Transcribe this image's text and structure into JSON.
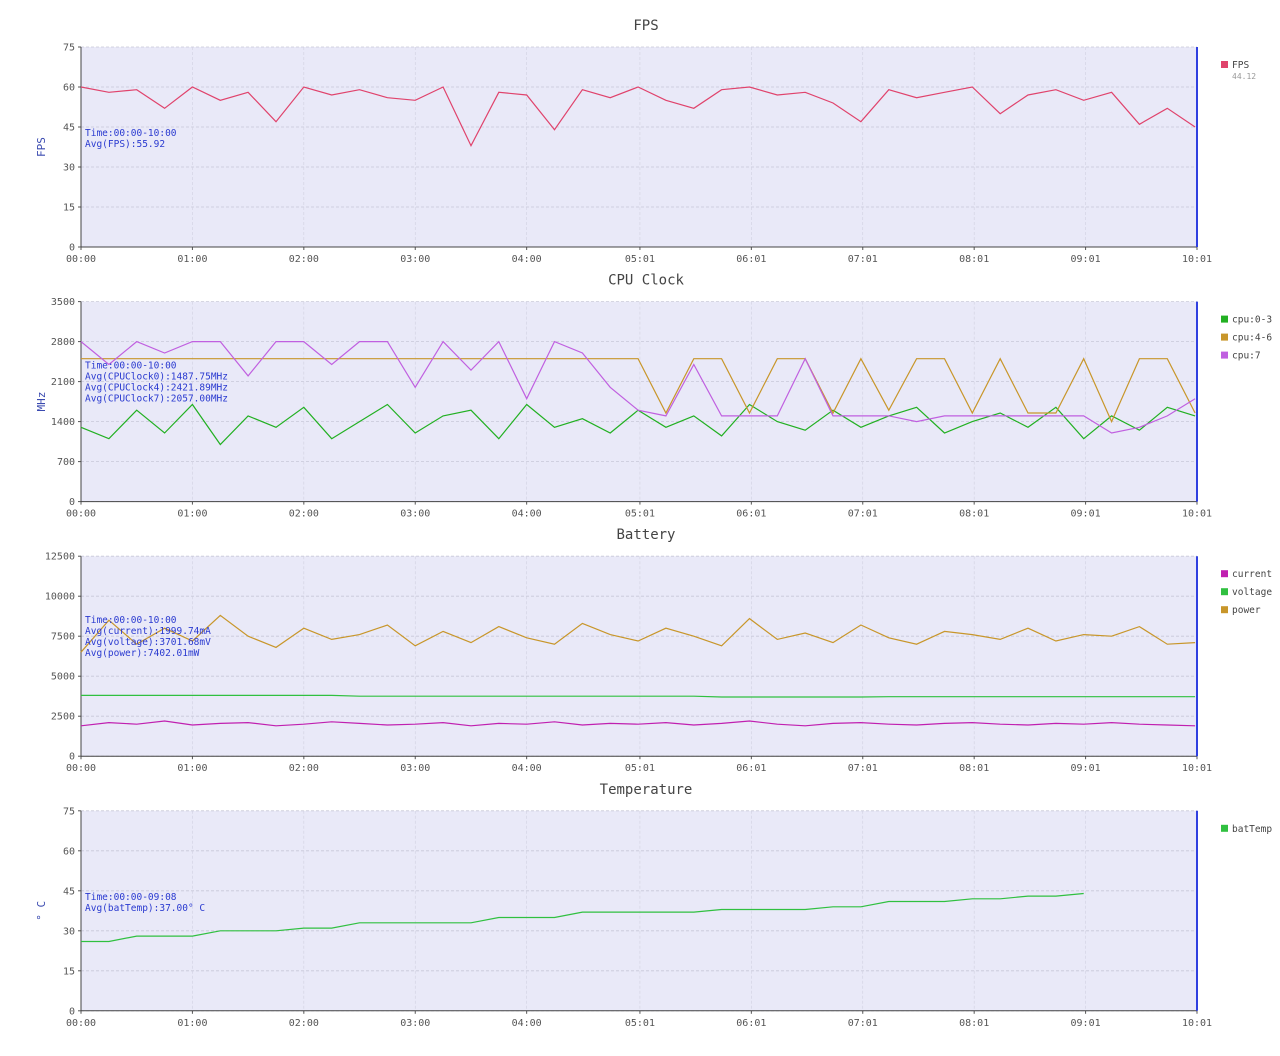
{
  "chart_data": [
    {
      "type": "line",
      "title": "FPS",
      "ylabel": "FPS",
      "legend": "right",
      "annotations": [
        "Time:00:00-10:00",
        "Avg(FPS):55.92"
      ],
      "x": [
        0,
        15,
        30,
        45,
        60,
        75,
        90,
        105,
        120,
        135,
        150,
        165,
        180,
        195,
        210,
        225,
        240,
        255,
        270,
        285,
        300,
        315,
        330,
        345,
        360,
        375,
        390,
        405,
        420,
        435,
        450,
        465,
        480,
        495,
        510,
        525,
        540,
        555,
        570,
        585,
        600
      ],
      "xlim": [
        0,
        601
      ],
      "xticks": [
        {
          "value": 0,
          "label": "00:00"
        },
        {
          "value": 60,
          "label": "01:00"
        },
        {
          "value": 120,
          "label": "02:00"
        },
        {
          "value": 180,
          "label": "03:00"
        },
        {
          "value": 240,
          "label": "04:00"
        },
        {
          "value": 301,
          "label": "05:01"
        },
        {
          "value": 361,
          "label": "06:01"
        },
        {
          "value": 421,
          "label": "07:01"
        },
        {
          "value": 481,
          "label": "08:01"
        },
        {
          "value": 541,
          "label": "09:01"
        },
        {
          "value": 601,
          "label": "10:01"
        }
      ],
      "ylim": [
        0,
        75
      ],
      "yticks": [
        0,
        15,
        30,
        45,
        60,
        75
      ],
      "grid": true,
      "series": [
        {
          "name": "FPS",
          "legend_value": "44.12",
          "color": "#e0436c",
          "values": [
            60,
            58,
            59,
            52,
            60,
            55,
            58,
            47,
            60,
            57,
            59,
            56,
            55,
            60,
            38,
            58,
            57,
            44,
            59,
            56,
            60,
            55,
            52,
            59,
            60,
            57,
            58,
            54,
            47,
            59,
            56,
            58,
            60,
            50,
            57,
            59,
            55,
            58,
            46,
            52,
            45
          ]
        }
      ]
    },
    {
      "type": "line",
      "title": "CPU Clock",
      "ylabel": "MHz",
      "legend": "right",
      "annotations": [
        "Time:00:00-10:00",
        "Avg(CPUClock0):1487.75MHz",
        "Avg(CPUClock4):2421.89MHz",
        "Avg(CPUClock7):2057.00MHz"
      ],
      "x": [
        0,
        15,
        30,
        45,
        60,
        75,
        90,
        105,
        120,
        135,
        150,
        165,
        180,
        195,
        210,
        225,
        240,
        255,
        270,
        285,
        300,
        315,
        330,
        345,
        360,
        375,
        390,
        405,
        420,
        435,
        450,
        465,
        480,
        495,
        510,
        525,
        540,
        555,
        570,
        585,
        600
      ],
      "xlim": [
        0,
        601
      ],
      "xticks": [
        {
          "value": 0,
          "label": "00:00"
        },
        {
          "value": 60,
          "label": "01:00"
        },
        {
          "value": 120,
          "label": "02:00"
        },
        {
          "value": 180,
          "label": "03:00"
        },
        {
          "value": 240,
          "label": "04:00"
        },
        {
          "value": 301,
          "label": "05:01"
        },
        {
          "value": 361,
          "label": "06:01"
        },
        {
          "value": 421,
          "label": "07:01"
        },
        {
          "value": 481,
          "label": "08:01"
        },
        {
          "value": 541,
          "label": "09:01"
        },
        {
          "value": 601,
          "label": "10:01"
        }
      ],
      "ylim": [
        0,
        3500
      ],
      "yticks": [
        0,
        700,
        1400,
        2100,
        2800,
        3500
      ],
      "grid": true,
      "series": [
        {
          "name": "cpu:0-3",
          "color": "#22b022",
          "values": [
            1300,
            1100,
            1600,
            1200,
            1700,
            1000,
            1500,
            1300,
            1650,
            1100,
            1400,
            1700,
            1200,
            1500,
            1600,
            1100,
            1700,
            1300,
            1450,
            1200,
            1600,
            1300,
            1500,
            1150,
            1700,
            1400,
            1250,
            1600,
            1300,
            1500,
            1650,
            1200,
            1400,
            1550,
            1300,
            1650,
            1100,
            1500,
            1250,
            1650,
            1500
          ]
        },
        {
          "name": "cpu:4-6",
          "color": "#c8962a",
          "values": [
            2500,
            2500,
            2500,
            2500,
            2500,
            2500,
            2500,
            2500,
            2500,
            2500,
            2500,
            2500,
            2500,
            2500,
            2500,
            2500,
            2500,
            2500,
            2500,
            2500,
            2500,
            1550,
            2500,
            2500,
            1550,
            2500,
            2500,
            1550,
            2500,
            1600,
            2500,
            2500,
            1550,
            2500,
            1550,
            1550,
            2500,
            1400,
            2500,
            2500,
            1550
          ]
        },
        {
          "name": "cpu:7",
          "color": "#c060e0",
          "values": [
            2800,
            2400,
            2800,
            2600,
            2800,
            2800,
            2200,
            2800,
            2800,
            2400,
            2800,
            2800,
            2000,
            2800,
            2300,
            2800,
            1800,
            2800,
            2600,
            2000,
            1600,
            1500,
            2400,
            1500,
            1500,
            1500,
            2500,
            1500,
            1500,
            1500,
            1400,
            1500,
            1500,
            1500,
            1500,
            1500,
            1500,
            1200,
            1300,
            1500,
            1800
          ]
        }
      ]
    },
    {
      "type": "line",
      "title": "Battery",
      "legend": "right",
      "annotations": [
        "Time:00:00-10:00",
        "Avg(current):1999.74mA",
        "Avg(voltage):3701.68mV",
        "Avg(power):7402.01mW"
      ],
      "x": [
        0,
        15,
        30,
        45,
        60,
        75,
        90,
        105,
        120,
        135,
        150,
        165,
        180,
        195,
        210,
        225,
        240,
        255,
        270,
        285,
        300,
        315,
        330,
        345,
        360,
        375,
        390,
        405,
        420,
        435,
        450,
        465,
        480,
        495,
        510,
        525,
        540,
        555,
        570,
        585,
        600
      ],
      "xlim": [
        0,
        601
      ],
      "xticks": [
        {
          "value": 0,
          "label": "00:00"
        },
        {
          "value": 60,
          "label": "01:00"
        },
        {
          "value": 120,
          "label": "02:00"
        },
        {
          "value": 180,
          "label": "03:00"
        },
        {
          "value": 240,
          "label": "04:00"
        },
        {
          "value": 301,
          "label": "05:01"
        },
        {
          "value": 361,
          "label": "06:01"
        },
        {
          "value": 421,
          "label": "07:01"
        },
        {
          "value": 481,
          "label": "08:01"
        },
        {
          "value": 541,
          "label": "09:01"
        },
        {
          "value": 601,
          "label": "10:01"
        }
      ],
      "ylim": [
        0,
        12500
      ],
      "yticks": [
        0,
        2500,
        5000,
        7500,
        10000,
        12500
      ],
      "grid": true,
      "series": [
        {
          "name": "current",
          "color": "#c020b0",
          "values": [
            1900,
            2100,
            2000,
            2200,
            1950,
            2050,
            2100,
            1900,
            2000,
            2150,
            2050,
            1950,
            2000,
            2100,
            1900,
            2050,
            2000,
            2150,
            1950,
            2050,
            2000,
            2100,
            1950,
            2050,
            2200,
            2000,
            1900,
            2050,
            2100,
            2000,
            1950,
            2050,
            2100,
            2000,
            1950,
            2050,
            2000,
            2100,
            2000,
            1950,
            1900
          ]
        },
        {
          "name": "voltage",
          "color": "#30c040",
          "values": [
            3800,
            3800,
            3800,
            3800,
            3800,
            3800,
            3800,
            3800,
            3800,
            3800,
            3750,
            3750,
            3750,
            3750,
            3750,
            3750,
            3750,
            3750,
            3750,
            3750,
            3750,
            3750,
            3750,
            3700,
            3700,
            3700,
            3700,
            3700,
            3700,
            3720,
            3720,
            3720,
            3720,
            3720,
            3720,
            3720,
            3720,
            3720,
            3720,
            3720,
            3720
          ]
        },
        {
          "name": "power",
          "color": "#c8962a",
          "values": [
            6500,
            8500,
            7000,
            8000,
            7200,
            8800,
            7500,
            6800,
            8000,
            7300,
            7600,
            8200,
            6900,
            7800,
            7100,
            8100,
            7400,
            7000,
            8300,
            7600,
            7200,
            8000,
            7500,
            6900,
            8600,
            7300,
            7700,
            7100,
            8200,
            7400,
            7000,
            7800,
            7600,
            7300,
            8000,
            7200,
            7600,
            7500,
            8100,
            7000,
            7100
          ]
        }
      ]
    },
    {
      "type": "line",
      "title": "Temperature",
      "ylabel": "° C",
      "legend": "right",
      "annotations": [
        "Time:00:00-09:08",
        "Avg(batTemp):37.00° C"
      ],
      "x": [
        0,
        15,
        30,
        45,
        60,
        75,
        90,
        105,
        120,
        135,
        150,
        165,
        180,
        195,
        210,
        225,
        240,
        255,
        270,
        285,
        300,
        315,
        330,
        345,
        360,
        375,
        390,
        405,
        420,
        435,
        450,
        465,
        480,
        495,
        510,
        525,
        540,
        555,
        570,
        585,
        600
      ],
      "xlim": [
        0,
        601
      ],
      "xticks": [
        {
          "value": 0,
          "label": "00:00"
        },
        {
          "value": 60,
          "label": "01:00"
        },
        {
          "value": 120,
          "label": "02:00"
        },
        {
          "value": 180,
          "label": "03:00"
        },
        {
          "value": 240,
          "label": "04:00"
        },
        {
          "value": 301,
          "label": "05:01"
        },
        {
          "value": 361,
          "label": "06:01"
        },
        {
          "value": 421,
          "label": "07:01"
        },
        {
          "value": 481,
          "label": "08:01"
        },
        {
          "value": 541,
          "label": "09:01"
        },
        {
          "value": 601,
          "label": "10:01"
        }
      ],
      "ylim": [
        0,
        75
      ],
      "yticks": [
        0,
        15,
        30,
        45,
        60,
        75
      ],
      "grid": true,
      "series": [
        {
          "name": "batTemp",
          "color": "#30c040",
          "values": [
            26,
            26,
            28,
            28,
            28,
            30,
            30,
            30,
            31,
            31,
            33,
            33,
            33,
            33,
            33,
            35,
            35,
            35,
            37,
            37,
            37,
            37,
            37,
            38,
            38,
            38,
            38,
            39,
            39,
            41,
            41,
            41,
            42,
            42,
            43,
            43,
            44,
            null,
            null,
            null,
            null
          ]
        }
      ]
    }
  ]
}
